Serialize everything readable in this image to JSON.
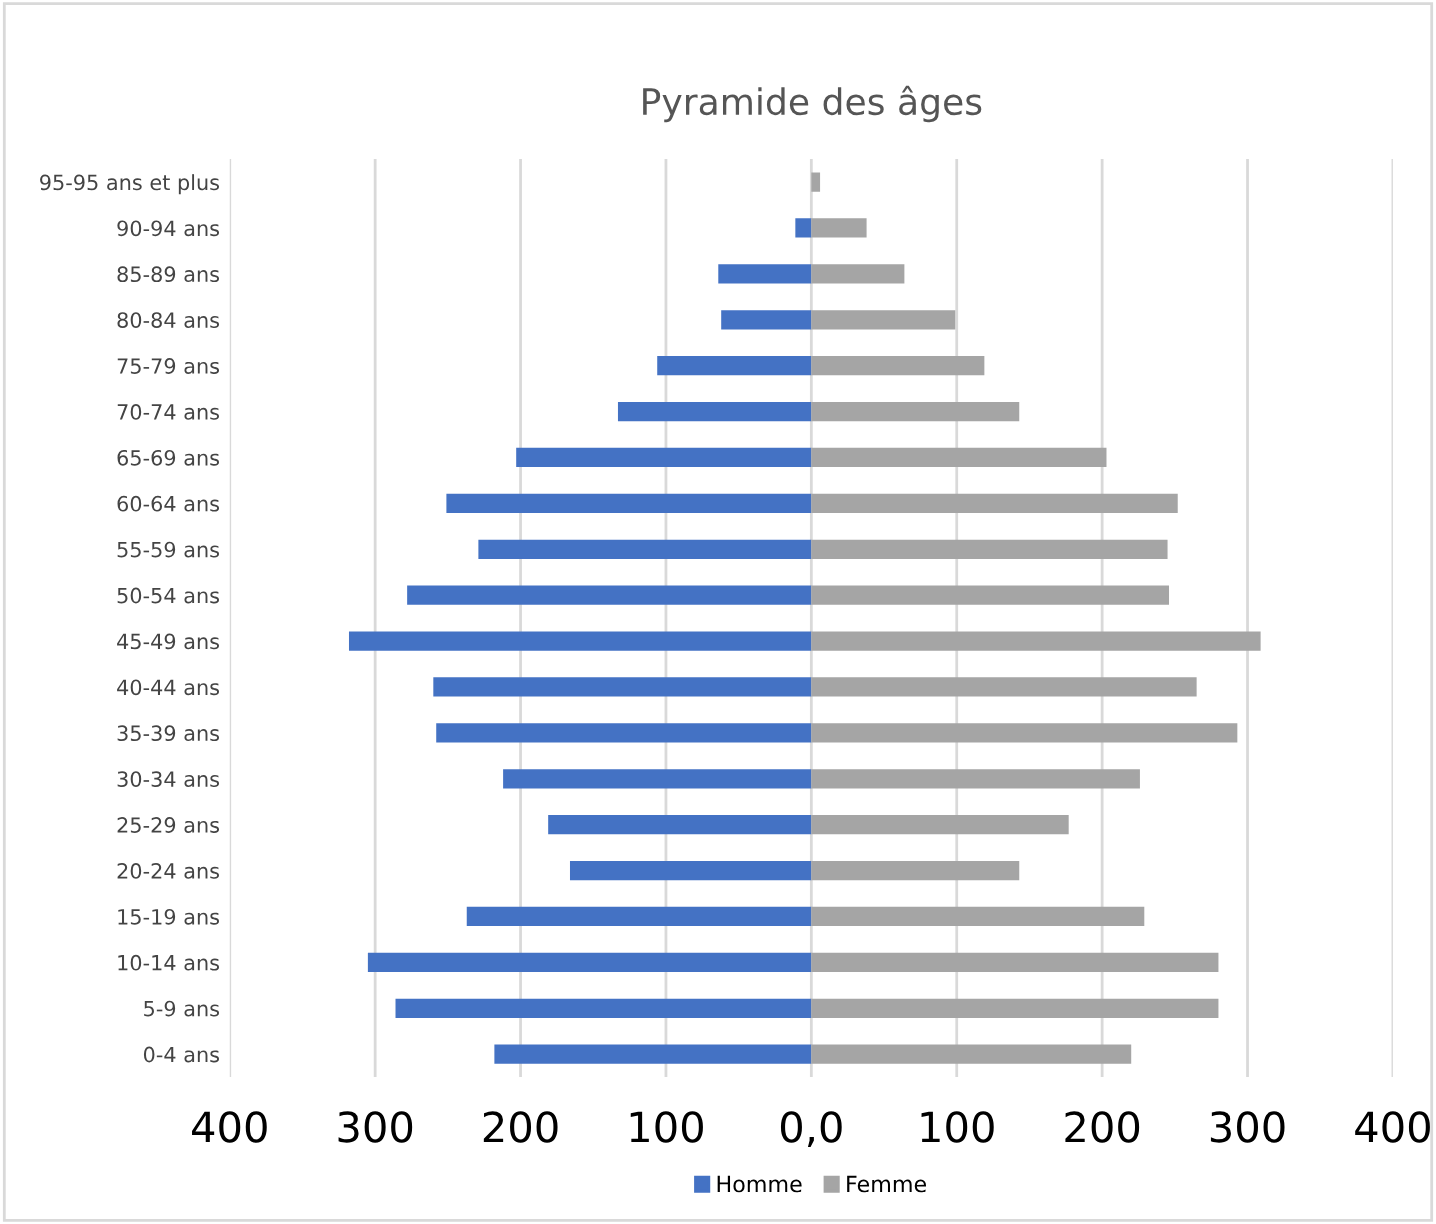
{
  "chart_data": {
    "type": "bar",
    "orientation": "horizontal",
    "title": "Pyramide des âges",
    "categories": [
      "95-95 ans et plus",
      "90-94 ans",
      "85-89 ans",
      "80-84 ans",
      "75-79 ans",
      "70-74 ans",
      "65-69 ans",
      "60-64 ans",
      "55-59 ans",
      "50-54 ans",
      "45-49 ans",
      "40-44 ans",
      "35-39 ans",
      "30-34 ans",
      "25-29 ans",
      "20-24 ans",
      "15-19 ans",
      "10-14 ans",
      "5-9 ans",
      "0-4 ans"
    ],
    "series": [
      {
        "name": "Homme",
        "color": "#4472c4",
        "values": [
          0,
          -11,
          -64,
          -62,
          -106,
          -133,
          -203,
          -251,
          -229,
          -278,
          -318,
          -260,
          -258,
          -212,
          -181,
          -166,
          -237,
          -305,
          -286,
          -218
        ]
      },
      {
        "name": "Femme",
        "color": "#a5a5a5",
        "values": [
          6,
          38,
          64,
          99,
          119,
          143,
          203,
          252,
          245,
          246,
          309,
          265,
          293,
          226,
          177,
          143,
          229,
          280,
          280,
          220
        ]
      }
    ],
    "xlim": [
      -400,
      400
    ],
    "xticks": [
      {
        "value": -400,
        "label": "400"
      },
      {
        "value": -300,
        "label": "300"
      },
      {
        "value": -200,
        "label": "200"
      },
      {
        "value": -100,
        "label": "100"
      },
      {
        "value": 0,
        "label": "0,0"
      },
      100,
      200,
      300,
      400
    ],
    "stacked": true,
    "grid": "x",
    "legend": "bottom"
  }
}
